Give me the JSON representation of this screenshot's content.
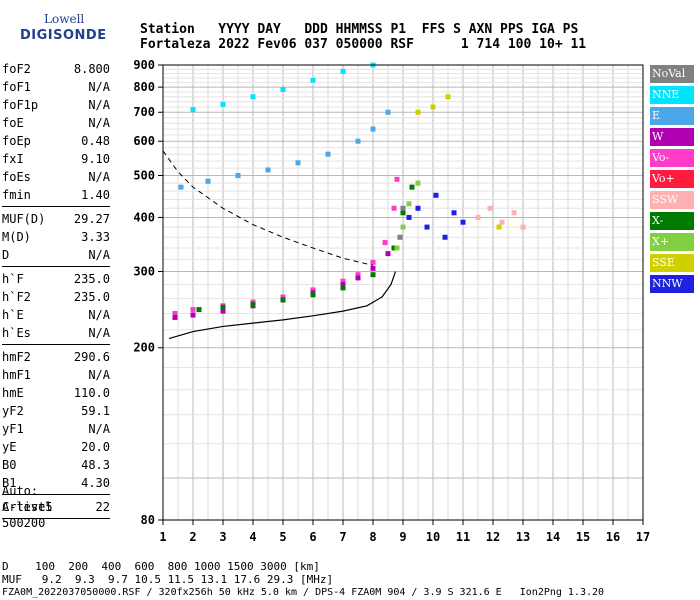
{
  "logo": {
    "line1": "Lowell",
    "line2": "DIGISONDE"
  },
  "header": {
    "line1": "Station   YYYY DAY   DDD HHMMSS P1  FFS S AXN PPS IGA PS",
    "line2": "Fortaleza 2022 Fev06 037 050000 RSF      1 714 100 10+ 11"
  },
  "params": {
    "group1": [
      {
        "label": "foF2",
        "value": "8.800"
      },
      {
        "label": "foF1",
        "value": "N/A"
      },
      {
        "label": "foF1p",
        "value": "N/A"
      },
      {
        "label": "foE",
        "value": "N/A"
      },
      {
        "label": "foEp",
        "value": "0.48"
      },
      {
        "label": "fxI",
        "value": "9.10"
      },
      {
        "label": "foEs",
        "value": "N/A"
      },
      {
        "label": "fmin",
        "value": "1.40"
      }
    ],
    "group2": [
      {
        "label": "MUF(D)",
        "value": "29.27"
      },
      {
        "label": "M(D)",
        "value": "3.33"
      },
      {
        "label": "D",
        "value": "N/A"
      }
    ],
    "group3": [
      {
        "label": "h`F",
        "value": "235.0"
      },
      {
        "label": "h`F2",
        "value": "235.0"
      },
      {
        "label": "h`E",
        "value": "N/A"
      },
      {
        "label": "h`Es",
        "value": "N/A"
      }
    ],
    "group4": [
      {
        "label": "hmF2",
        "value": "290.6"
      },
      {
        "label": "hmF1",
        "value": "N/A"
      },
      {
        "label": "hmE",
        "value": "110.0"
      },
      {
        "label": "yF2",
        "value": "59.1"
      },
      {
        "label": "yF1",
        "value": "N/A"
      },
      {
        "label": "yE",
        "value": "20.0"
      },
      {
        "label": "B0",
        "value": "48.3"
      },
      {
        "label": "B1",
        "value": "4.30"
      }
    ],
    "group5": [
      {
        "label": "C-level",
        "value": "22"
      }
    ]
  },
  "auto": {
    "line1": "Auto:",
    "line2": "Artist5",
    "line3": "500200"
  },
  "footer": {
    "line1": "D    100  200  400  600  800 1000 1500 3000 [km]",
    "line2": "MUF   9.2  9.3  9.7 10.5 11.5 13.1 17.6 29.3 [MHz]",
    "line3": "FZA0M_2022037050000.RSF / 320fx256h 50 kHz 5.0 km / DPS-4 FZA0M 904 / 3.9 S 321.6 E   Ion2Png 1.3.20"
  },
  "legend": [
    {
      "label": "NoVal",
      "color": "#808080"
    },
    {
      "label": "NNE",
      "color": "#00e5ff"
    },
    {
      "label": "E",
      "color": "#4aa8e8"
    },
    {
      "label": "W",
      "color": "#b000b0"
    },
    {
      "label": "Vo-",
      "color": "#ff3cc8"
    },
    {
      "label": "Vo+",
      "color": "#ff1a40"
    },
    {
      "label": "SSW",
      "color": "#ffb0b0"
    },
    {
      "label": "X-",
      "color": "#007a00"
    },
    {
      "label": "X+",
      "color": "#80d040"
    },
    {
      "label": "SSE",
      "color": "#d0d000"
    },
    {
      "label": "NNW",
      "color": "#2020e0"
    }
  ],
  "chart_data": {
    "type": "scatter",
    "title": "",
    "xlabel": "",
    "ylabel": "",
    "xlim": [
      1,
      17
    ],
    "ylim": [
      80,
      900
    ],
    "y_scale": "log",
    "x_ticks": [
      1,
      2,
      3,
      4,
      5,
      6,
      7,
      8,
      9,
      10,
      11,
      12,
      13,
      14,
      15,
      16,
      17
    ],
    "y_ticks": [
      80,
      200,
      300,
      400,
      500,
      600,
      700,
      800,
      900
    ],
    "grid": true,
    "legend_position": "right",
    "series": [
      {
        "name": "Vo-",
        "color": "#ff3cc8",
        "x": [
          1.4,
          2.0,
          3.0,
          4.0,
          5.0,
          6.0,
          7.0,
          7.5,
          8.0,
          8.4,
          8.7,
          8.8
        ],
        "y": [
          240,
          245,
          250,
          255,
          262,
          272,
          285,
          295,
          315,
          350,
          420,
          490
        ]
      },
      {
        "name": "W",
        "color": "#b000b0",
        "x": [
          1.4,
          2.0,
          3.0,
          4.0,
          5.0,
          6.0,
          7.0,
          7.5,
          8.0,
          8.5
        ],
        "y": [
          235,
          238,
          243,
          250,
          258,
          268,
          280,
          290,
          305,
          330
        ]
      },
      {
        "name": "X-",
        "color": "#007a00",
        "x": [
          2.2,
          3.0,
          4.0,
          5.0,
          6.0,
          7.0,
          8.0,
          8.7,
          9.0,
          9.3
        ],
        "y": [
          245,
          248,
          252,
          258,
          265,
          275,
          295,
          340,
          410,
          470
        ]
      },
      {
        "name": "X+",
        "color": "#80d040",
        "x": [
          8.8,
          9.0,
          9.2,
          9.5
        ],
        "y": [
          340,
          380,
          430,
          480
        ]
      },
      {
        "name": "E",
        "color": "#4aa8e8",
        "x": [
          1.6,
          2.5,
          3.5,
          4.5,
          5.5,
          6.5,
          7.5,
          8.0,
          8.5
        ],
        "y": [
          470,
          485,
          500,
          515,
          535,
          560,
          600,
          640,
          700
        ]
      },
      {
        "name": "NNE",
        "color": "#00e5ff",
        "x": [
          2.0,
          3.0,
          4.0,
          5.0,
          6.0,
          7.0,
          8.0
        ],
        "y": [
          710,
          730,
          760,
          790,
          830,
          870,
          900
        ]
      },
      {
        "name": "NNW",
        "color": "#2020e0",
        "x": [
          9.2,
          9.5,
          9.8,
          10.1,
          10.4,
          10.7,
          11.0
        ],
        "y": [
          400,
          420,
          380,
          450,
          360,
          410,
          390
        ]
      },
      {
        "name": "SSW",
        "color": "#ffb0b0",
        "x": [
          11.5,
          11.9,
          12.3,
          12.7,
          13.0
        ],
        "y": [
          400,
          420,
          390,
          410,
          380
        ]
      },
      {
        "name": "SSE",
        "color": "#d0d000",
        "x": [
          9.5,
          10.0,
          10.5,
          12.2
        ],
        "y": [
          700,
          720,
          760,
          380
        ]
      },
      {
        "name": "NoVal",
        "color": "#808080",
        "x": [
          8.9,
          9.0
        ],
        "y": [
          360,
          420
        ]
      }
    ],
    "profile_curve": {
      "x": [
        1.2,
        2.0,
        3.0,
        4.0,
        5.0,
        6.0,
        7.0,
        7.8,
        8.3,
        8.6,
        8.75
      ],
      "y": [
        210,
        218,
        224,
        228,
        232,
        237,
        243,
        250,
        262,
        280,
        300
      ]
    },
    "muf_curve": {
      "x": [
        1.0,
        1.5,
        2.0,
        3.0,
        4.0,
        5.0,
        6.0,
        7.0,
        8.0
      ],
      "y": [
        570,
        510,
        470,
        420,
        385,
        360,
        340,
        322,
        310
      ]
    }
  }
}
